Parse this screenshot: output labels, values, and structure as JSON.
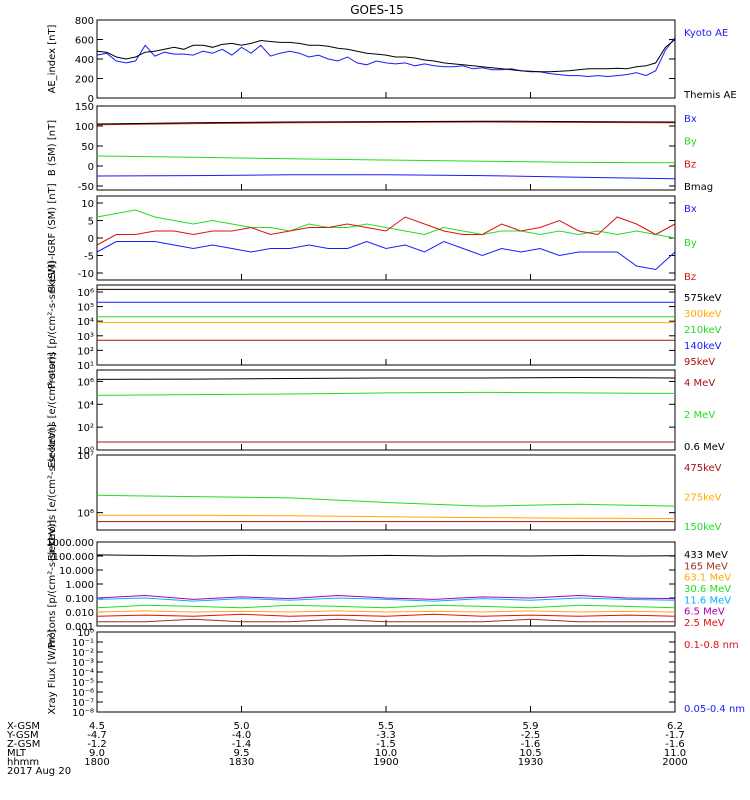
{
  "title": "GOES-15",
  "colors": {
    "black": "#000000",
    "blue": "#1a1aff",
    "green": "#22dd22",
    "red": "#dd1111",
    "darkred": "#aa1111",
    "orange": "#ffaa00",
    "cyan": "#00b0ff",
    "purple": "#aa00aa",
    "brown": "#993322"
  },
  "chart_data": [
    {
      "type": "line",
      "ylabel": "AE_index [nT]",
      "ylim": [
        0,
        800
      ],
      "yscale": "linear",
      "yticks": [
        "0",
        "200",
        "400",
        "600",
        "800"
      ],
      "yticks_values": [
        0,
        200,
        400,
        600,
        800
      ],
      "x": [
        0,
        2,
        4,
        6,
        8,
        10,
        12,
        14,
        16,
        18,
        20,
        22,
        24,
        26,
        28,
        30,
        32,
        34,
        36,
        38,
        40,
        42,
        44,
        46,
        48,
        50,
        52,
        54,
        56,
        58,
        60,
        62,
        64,
        66,
        68,
        70,
        72,
        74,
        76,
        78,
        80,
        82,
        84,
        86,
        88,
        90,
        92,
        94,
        96,
        98,
        100,
        102,
        104,
        106,
        108,
        110,
        112,
        114,
        116,
        118,
        120
      ],
      "series": [
        {
          "name": "Kyoto AE",
          "color": "blue",
          "values": [
            440,
            460,
            380,
            360,
            380,
            540,
            430,
            470,
            450,
            450,
            440,
            480,
            460,
            500,
            440,
            520,
            460,
            540,
            430,
            460,
            480,
            460,
            420,
            440,
            400,
            380,
            420,
            360,
            340,
            380,
            360,
            350,
            360,
            330,
            350,
            330,
            320,
            320,
            330,
            300,
            310,
            290,
            290,
            300,
            280,
            270,
            270,
            250,
            240,
            230,
            230,
            220,
            230,
            220,
            230,
            240,
            260,
            230,
            280,
            490,
            620
          ]
        },
        {
          "name": "Themis AE",
          "color": "black",
          "values": [
            480,
            470,
            420,
            400,
            420,
            470,
            480,
            500,
            520,
            500,
            540,
            540,
            520,
            550,
            560,
            540,
            560,
            590,
            580,
            570,
            570,
            560,
            540,
            540,
            530,
            510,
            500,
            480,
            460,
            450,
            440,
            420,
            420,
            410,
            390,
            380,
            360,
            350,
            340,
            330,
            320,
            310,
            300,
            290,
            280,
            275,
            270,
            270,
            275,
            280,
            290,
            300,
            300,
            300,
            305,
            300,
            320,
            330,
            360,
            520,
            600
          ]
        }
      ]
    },
    {
      "type": "line",
      "ylabel": "B (SM) [nT]",
      "ylim": [
        -60,
        150
      ],
      "yscale": "linear",
      "yticks": [
        "-50",
        "0",
        "50",
        "100",
        "150"
      ],
      "yticks_values": [
        -50,
        0,
        50,
        100,
        150
      ],
      "x": [
        0,
        20,
        40,
        60,
        80,
        100,
        120
      ],
      "series": [
        {
          "name": "Bx",
          "color": "blue",
          "values": [
            -25,
            -24,
            -22,
            -22,
            -24,
            -28,
            -32
          ]
        },
        {
          "name": "By",
          "color": "green",
          "values": [
            25,
            22,
            18,
            15,
            12,
            9,
            8
          ]
        },
        {
          "name": "Bz",
          "color": "red",
          "values": [
            103,
            106,
            108,
            109,
            110,
            109,
            108
          ]
        },
        {
          "name": "Bmag",
          "color": "black",
          "values": [
            105,
            108,
            110,
            111,
            112,
            111,
            110
          ]
        }
      ]
    },
    {
      "type": "line",
      "ylabel": "B (SM)-IGRF (SM) [nT]",
      "ylim": [
        -12,
        12
      ],
      "yscale": "linear",
      "yticks": [
        "-10",
        "-5",
        "0",
        "5",
        "10"
      ],
      "yticks_values": [
        -10,
        -5,
        0,
        5,
        10
      ],
      "x": [
        0,
        4,
        8,
        12,
        16,
        20,
        24,
        28,
        32,
        36,
        40,
        44,
        48,
        52,
        56,
        60,
        64,
        68,
        72,
        76,
        80,
        84,
        88,
        92,
        96,
        100,
        104,
        108,
        112,
        116,
        120
      ],
      "series": [
        {
          "name": "Bx",
          "color": "blue",
          "values": [
            -4,
            -1,
            -1,
            -1,
            -2,
            -3,
            -2,
            -3,
            -4,
            -3,
            -3,
            -2,
            -3,
            -3,
            -1,
            -3,
            -2,
            -4,
            -1,
            -3,
            -5,
            -3,
            -4,
            -3,
            -5,
            -4,
            -4,
            -4,
            -8,
            -9,
            -4
          ]
        },
        {
          "name": "By",
          "color": "green",
          "values": [
            6,
            7,
            8,
            6,
            5,
            4,
            5,
            4,
            3,
            3,
            2,
            4,
            3,
            3,
            4,
            3,
            2,
            1,
            3,
            2,
            1,
            2,
            2,
            1,
            2,
            1,
            2,
            1,
            2,
            1,
            0
          ]
        },
        {
          "name": "Bz",
          "color": "red",
          "values": [
            -2,
            1,
            1,
            2,
            2,
            1,
            2,
            2,
            3,
            1,
            2,
            3,
            3,
            4,
            3,
            2,
            6,
            4,
            2,
            1,
            1,
            4,
            2,
            3,
            5,
            2,
            1,
            6,
            4,
            1,
            4
          ]
        }
      ]
    },
    {
      "type": "line",
      "ylabel": "Protons [p/(cm²-s-sr-keV)]",
      "yscale": "log",
      "ylim": [
        10,
        3000000
      ],
      "yticks": [
        "10¹",
        "10²",
        "10³",
        "10⁴",
        "10⁵",
        "10⁶"
      ],
      "yticks_values": [
        10,
        100,
        1000,
        10000,
        100000,
        1000000
      ],
      "x": [
        0,
        60,
        120
      ],
      "series": [
        {
          "name": "575keV",
          "color": "black",
          "values": [
            1500000,
            1500000,
            1500000
          ]
        },
        {
          "name": "300keV",
          "color": "orange",
          "values": [
            8000,
            8000,
            8000
          ]
        },
        {
          "name": "210keV",
          "color": "green",
          "values": [
            20000,
            20000,
            20000
          ]
        },
        {
          "name": "140keV",
          "color": "blue",
          "values": [
            200000,
            200000,
            200000
          ]
        },
        {
          "name": "95keV",
          "color": "darkred",
          "values": [
            500,
            500,
            500
          ]
        }
      ]
    },
    {
      "type": "line",
      "ylabel": "Electrons [e/(cm²-s-sr)]",
      "yscale": "log",
      "ylim": [
        1,
        10000000
      ],
      "yticks": [
        "10⁰",
        "10²",
        "10⁴",
        "10⁶"
      ],
      "yticks_values": [
        1,
        100,
        10000,
        1000000
      ],
      "x": [
        0,
        20,
        40,
        60,
        80,
        100,
        120
      ],
      "series": [
        {
          "name": "4 MeV",
          "color": "darkred",
          "values": [
            5,
            5,
            5,
            5,
            5,
            5,
            5
          ]
        },
        {
          "name": "2 MeV",
          "color": "green",
          "values": [
            60000,
            70000,
            80000,
            100000,
            110000,
            100000,
            90000
          ]
        },
        {
          "name": "0.6 MeV",
          "color": "black",
          "values": [
            1500000,
            1600000,
            1800000,
            2000000,
            2000000,
            2200000,
            2000000
          ]
        }
      ]
    },
    {
      "type": "line",
      "ylabel": "Electrons [e/(cm²-s-sr-keV)]",
      "yscale": "log",
      "ylim": [
        500000,
        10000000
      ],
      "yticks": [
        "10⁶",
        "10⁷"
      ],
      "yticks_values": [
        1000000,
        10000000
      ],
      "x": [
        0,
        20,
        40,
        60,
        80,
        100,
        120
      ],
      "series": [
        {
          "name": "475keV",
          "color": "darkred",
          "values": [
            700000,
            700000,
            700000,
            700000,
            700000,
            700000,
            700000
          ]
        },
        {
          "name": "275keV",
          "color": "orange",
          "values": [
            900000,
            900000,
            880000,
            850000,
            820000,
            800000,
            790000
          ]
        },
        {
          "name": "150keV",
          "color": "green",
          "values": [
            2000000,
            1900000,
            1800000,
            1500000,
            1300000,
            1400000,
            1300000
          ]
        }
      ]
    },
    {
      "type": "line",
      "ylabel": "Protons [p/(cm²-s-sr-keV)]",
      "yscale": "log",
      "ylim": [
        0.001,
        1000
      ],
      "yticks": [
        "0.001",
        "0.010",
        "0.100",
        "1.000",
        "10.000",
        "100.000",
        "1000.000"
      ],
      "yticks_values": [
        0.001,
        0.01,
        0.1,
        1,
        10,
        100,
        1000
      ],
      "x": [
        0,
        10,
        20,
        30,
        40,
        50,
        60,
        70,
        80,
        90,
        100,
        110,
        120
      ],
      "series": [
        {
          "name": "433 MeV",
          "color": "black",
          "values": [
            120,
            110,
            100,
            110,
            105,
            100,
            110,
            100,
            105,
            100,
            110,
            100,
            105
          ]
        },
        {
          "name": "165 MeV",
          "color": "brown",
          "values": [
            0.002,
            0.002,
            0.003,
            0.002,
            0.002,
            0.003,
            0.002,
            0.002,
            0.002,
            0.003,
            0.002,
            0.002,
            0.002
          ]
        },
        {
          "name": "63.1 MeV",
          "color": "orange",
          "values": [
            0.01,
            0.012,
            0.01,
            0.011,
            0.01,
            0.012,
            0.01,
            0.011,
            0.01,
            0.012,
            0.01,
            0.011,
            0.01
          ]
        },
        {
          "name": "30.6 MeV",
          "color": "green",
          "values": [
            0.02,
            0.03,
            0.025,
            0.02,
            0.03,
            0.025,
            0.02,
            0.03,
            0.025,
            0.02,
            0.03,
            0.025,
            0.02
          ]
        },
        {
          "name": "11.6 MeV",
          "color": "cyan",
          "values": [
            0.08,
            0.1,
            0.06,
            0.09,
            0.07,
            0.1,
            0.08,
            0.06,
            0.09,
            0.07,
            0.1,
            0.08,
            0.07
          ]
        },
        {
          "name": "6.5 MeV",
          "color": "purple",
          "values": [
            0.1,
            0.15,
            0.08,
            0.12,
            0.09,
            0.15,
            0.1,
            0.08,
            0.12,
            0.1,
            0.15,
            0.1,
            0.09
          ]
        },
        {
          "name": "2.5 MeV",
          "color": "red",
          "values": [
            0.005,
            0.006,
            0.005,
            0.007,
            0.005,
            0.006,
            0.005,
            0.007,
            0.005,
            0.006,
            0.005,
            0.006,
            0.005
          ]
        }
      ]
    },
    {
      "type": "line",
      "ylabel": "Xray Flux [W/m²]",
      "yscale": "log",
      "ylim": [
        1e-08,
        1
      ],
      "yticks": [
        "10⁻⁸",
        "10⁻⁷",
        "10⁻⁶",
        "10⁻⁵",
        "10⁻⁴",
        "10⁻³",
        "10⁻²",
        "10⁻¹",
        "10⁰"
      ],
      "yticks_values": [
        1e-08,
        1e-07,
        1e-06,
        1e-05,
        0.0001,
        0.001,
        0.01,
        0.1,
        1
      ],
      "x": [],
      "series": [
        {
          "name": "0.1-0.8 nm",
          "color": "red",
          "values": []
        },
        {
          "name": "0.05-0.4 nm",
          "color": "blue",
          "values": []
        }
      ]
    }
  ],
  "xaxis": {
    "row_labels": [
      "X-GSM",
      "Y-GSM",
      "Z-GSM",
      "MLT",
      "hhmm"
    ],
    "date": "2017 Aug 20",
    "ticks": [
      {
        "x": 0,
        "values": [
          "4.5",
          "-4.7",
          "-1.2",
          "9.0",
          "1800"
        ]
      },
      {
        "x": 30,
        "values": [
          "5.0",
          "-4.0",
          "-1.4",
          "9.5",
          "1830"
        ]
      },
      {
        "x": 60,
        "values": [
          "5.5",
          "-3.3",
          "-1.5",
          "10.0",
          "1900"
        ]
      },
      {
        "x": 90,
        "values": [
          "5.9",
          "-2.5",
          "-1.6",
          "10.5",
          "1930"
        ]
      },
      {
        "x": 120,
        "values": [
          "6.2",
          "-1.7",
          "-1.6",
          "11.0",
          "2000"
        ]
      }
    ]
  }
}
